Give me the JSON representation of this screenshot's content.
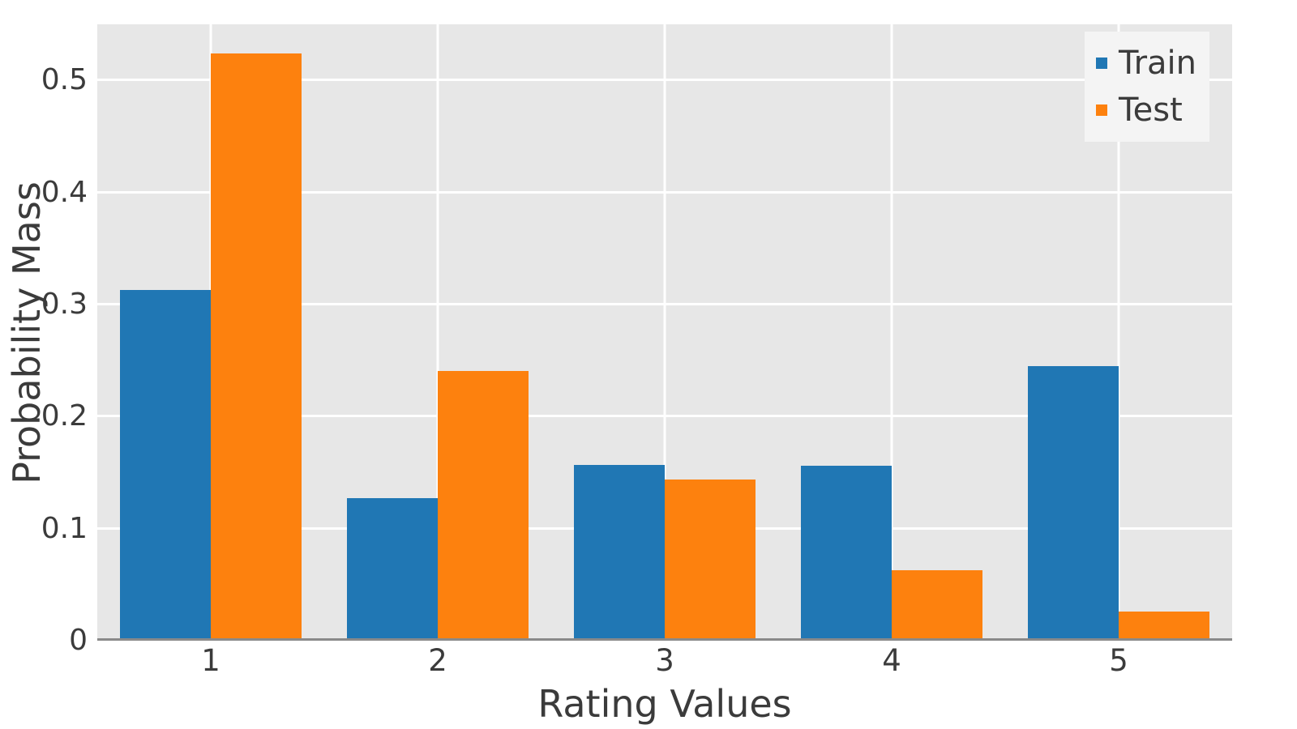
{
  "chart_data": {
    "type": "bar",
    "title": "",
    "xlabel": "Rating Values",
    "ylabel": "Probability Mass",
    "categories": [
      "1",
      "2",
      "3",
      "4",
      "5"
    ],
    "series": [
      {
        "name": "Train",
        "color": "#2077b4",
        "values": [
          0.313,
          0.127,
          0.157,
          0.156,
          0.245
        ]
      },
      {
        "name": "Test",
        "color": "#fd810e",
        "values": [
          0.524,
          0.241,
          0.144,
          0.063,
          0.026
        ]
      }
    ],
    "y_ticks": [
      0,
      0.1,
      0.2,
      0.3,
      0.4,
      0.5
    ],
    "y_tick_labels": [
      "0",
      "0.1",
      "0.2",
      "0.3",
      "0.4",
      "0.5"
    ],
    "ylim": [
      0,
      0.55
    ],
    "grid": true,
    "legend_position": "top-right",
    "colors": {
      "plot_background": "#e7e7e7",
      "grid": "#ffffff",
      "axis_line": "#8a8a8a",
      "text": "#3b3b3b",
      "legend_background": "#f4f4f4",
      "figure_background": "#ffffff"
    }
  }
}
